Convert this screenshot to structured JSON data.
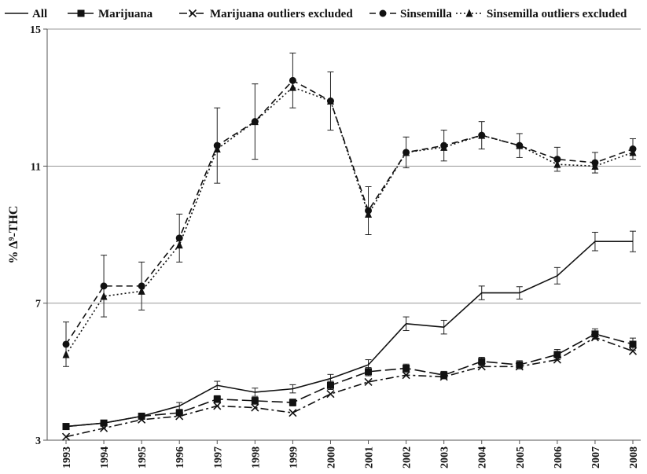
{
  "chart_data": {
    "type": "line",
    "xlabel": "",
    "ylabel": "% Δ⁹-THC",
    "ylim": [
      3,
      15
    ],
    "yticks": [
      3,
      7,
      11,
      15
    ],
    "grid": "horizontal at y ticks",
    "legend_position": "top",
    "categories": [
      "1993",
      "1994",
      "1995",
      "1996",
      "1997",
      "1998",
      "1999",
      "2000",
      "2001",
      "2002",
      "2003",
      "2004",
      "2005",
      "2006",
      "2007",
      "2008"
    ],
    "series": [
      {
        "name": "All",
        "style": "solid",
        "marker": "none",
        "values": [
          3.4,
          3.5,
          3.7,
          4.0,
          4.6,
          4.4,
          4.5,
          4.8,
          5.2,
          6.4,
          6.3,
          7.3,
          7.3,
          7.8,
          8.8,
          8.8
        ],
        "error": [
          0.05,
          0.06,
          0.07,
          0.1,
          0.12,
          0.12,
          0.12,
          0.12,
          0.15,
          0.2,
          0.2,
          0.2,
          0.18,
          0.24,
          0.27,
          0.3
        ]
      },
      {
        "name": "Marijuana",
        "style": "long-dash",
        "marker": "square",
        "values": [
          3.4,
          3.5,
          3.7,
          3.8,
          4.2,
          4.15,
          4.1,
          4.6,
          5.0,
          5.1,
          4.9,
          5.3,
          5.2,
          5.5,
          6.1,
          5.8
        ],
        "error": [
          0.05,
          0.05,
          0.06,
          0.07,
          0.1,
          0.1,
          0.1,
          0.12,
          0.12,
          0.12,
          0.11,
          0.12,
          0.12,
          0.15,
          0.15,
          0.18
        ]
      },
      {
        "name": "Marijuana outliers excluded",
        "style": "dash-dot",
        "marker": "x",
        "values": [
          3.1,
          3.35,
          3.6,
          3.7,
          4.0,
          3.95,
          3.8,
          4.35,
          4.7,
          4.9,
          4.85,
          5.15,
          5.15,
          5.35,
          6.0,
          5.6
        ],
        "error": []
      },
      {
        "name": "Sinsemilla",
        "style": "dash",
        "marker": "circle",
        "values": [
          5.8,
          7.5,
          7.5,
          8.9,
          11.6,
          12.3,
          13.5,
          12.9,
          9.7,
          11.4,
          11.6,
          11.9,
          11.6,
          11.2,
          11.1,
          11.5
        ],
        "error": [
          0.65,
          0.9,
          0.7,
          0.7,
          1.1,
          1.1,
          0.8,
          0.85,
          0.7,
          0.45,
          0.45,
          0.4,
          0.35,
          0.35,
          0.3,
          0.3
        ]
      },
      {
        "name": "Sinsemilla outliers excluded",
        "style": "dotted",
        "marker": "triangle",
        "values": [
          5.5,
          7.2,
          7.35,
          8.7,
          11.5,
          12.3,
          13.3,
          12.9,
          9.6,
          11.4,
          11.55,
          11.9,
          11.6,
          11.05,
          11.0,
          11.4
        ],
        "error": []
      }
    ]
  }
}
